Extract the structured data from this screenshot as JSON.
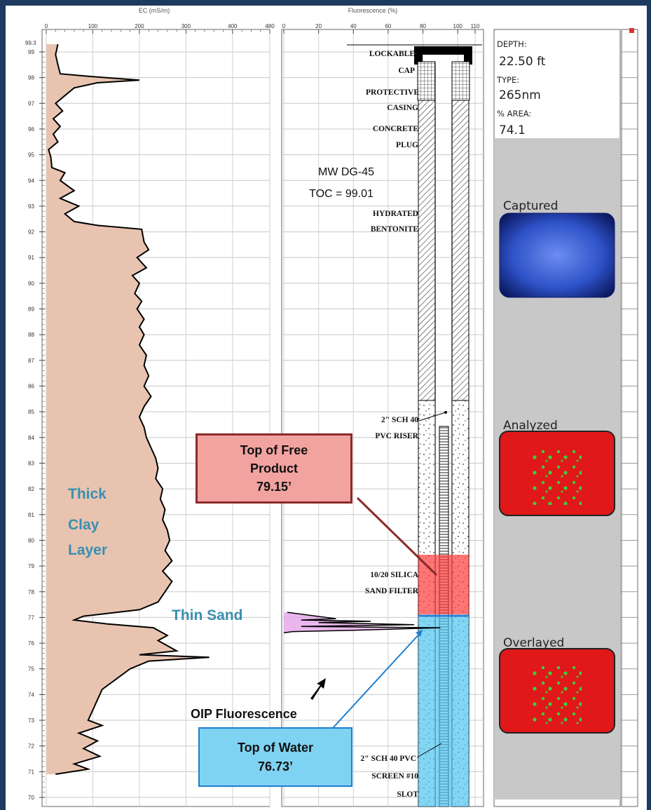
{
  "ec_log": {
    "axis_title": "EC (mS/m)",
    "x_ticks": [
      "0",
      "100",
      "200",
      "300",
      "400",
      "480"
    ],
    "top_label": "99.3",
    "depth_ticks": [
      "99",
      "98",
      "97",
      "96",
      "95",
      "94",
      "93",
      "92",
      "91",
      "90",
      "89",
      "88",
      "87",
      "86",
      "85",
      "84",
      "83",
      "82",
      "81",
      "80",
      "79",
      "78",
      "77",
      "76",
      "75",
      "74",
      "73",
      "72",
      "71",
      "70"
    ]
  },
  "fluor_log": {
    "axis_title": "Fluorescence (%)",
    "x_ticks": [
      "0",
      "20",
      "40",
      "60",
      "80",
      "100",
      "110"
    ]
  },
  "well": {
    "id_label": "MW DG-45",
    "toc_label": "TOC = 99.01",
    "labels": [
      "LOCKABLE",
      "CAP",
      "PROTECTIVE",
      "CASING",
      "CONCRETE",
      "PLUG",
      "HYDRATED",
      "BENTONITE",
      "2\" SCH 40",
      "PVC RISER",
      "10/20 SILICA",
      "SAND FILTER",
      "2\" SCH 40 PVC",
      "SCREEN #10",
      "SLOT"
    ]
  },
  "annotations": {
    "clay_layer": [
      "Thick",
      "Clay",
      "Layer"
    ],
    "thin_sand": "Thin Sand",
    "oip": "OIP Fluorescence",
    "free_product": {
      "line1": "Top of Free",
      "line2": "Product",
      "line3": "79.15’",
      "color": "#f2a3a0"
    },
    "water": {
      "line1": "Top of Water",
      "line2": "76.73’",
      "color": "#7fd3f2"
    }
  },
  "image_panel": {
    "depth_label": "DEPTH:",
    "depth_value": "22.50 ft",
    "type_label": "TYPE:",
    "type_value": "265nm",
    "area_label": "% AREA:",
    "area_value": "74.1",
    "captured": "Captured",
    "analyzed": "Analyzed",
    "overlayed": "Overlayed"
  },
  "chart_data": {
    "type": "line",
    "title": "",
    "series": [
      {
        "name": "EC",
        "x_axis": "EC (mS/m)",
        "y_axis": "depth",
        "points": [
          [
            25,
            99.3
          ],
          [
            20,
            98.9
          ],
          [
            25,
            98.5
          ],
          [
            30,
            98.15
          ],
          [
            90,
            98.05
          ],
          [
            200,
            97.9
          ],
          [
            110,
            97.8
          ],
          [
            60,
            97.6
          ],
          [
            40,
            97.3
          ],
          [
            20,
            97.0
          ],
          [
            35,
            96.7
          ],
          [
            15,
            96.4
          ],
          [
            30,
            96.1
          ],
          [
            15,
            95.8
          ],
          [
            25,
            95.5
          ],
          [
            5,
            95.2
          ],
          [
            10,
            94.9
          ],
          [
            12,
            94.5
          ],
          [
            40,
            94.3
          ],
          [
            30,
            94.0
          ],
          [
            60,
            93.6
          ],
          [
            30,
            93.3
          ],
          [
            70,
            93.0
          ],
          [
            40,
            92.7
          ],
          [
            60,
            92.4
          ],
          [
            110,
            92.25
          ],
          [
            205,
            92.1
          ],
          [
            210,
            91.6
          ],
          [
            220,
            91.3
          ],
          [
            195,
            91.0
          ],
          [
            215,
            90.6
          ],
          [
            185,
            90.3
          ],
          [
            200,
            90.0
          ],
          [
            190,
            89.6
          ],
          [
            205,
            89.3
          ],
          [
            195,
            89.0
          ],
          [
            210,
            88.6
          ],
          [
            200,
            88.3
          ],
          [
            210,
            88.0
          ],
          [
            200,
            87.6
          ],
          [
            215,
            87.2
          ],
          [
            210,
            86.8
          ],
          [
            220,
            86.4
          ],
          [
            210,
            86.0
          ],
          [
            225,
            85.6
          ],
          [
            210,
            85.2
          ],
          [
            200,
            84.8
          ],
          [
            210,
            84.4
          ],
          [
            215,
            84.0
          ],
          [
            225,
            83.6
          ],
          [
            235,
            83.2
          ],
          [
            240,
            82.8
          ],
          [
            235,
            82.4
          ],
          [
            250,
            82.0
          ],
          [
            245,
            81.6
          ],
          [
            255,
            81.2
          ],
          [
            250,
            80.8
          ],
          [
            260,
            80.4
          ],
          [
            265,
            80.0
          ],
          [
            255,
            79.6
          ],
          [
            270,
            79.2
          ],
          [
            250,
            78.8
          ],
          [
            270,
            78.4
          ],
          [
            255,
            78.0
          ],
          [
            240,
            77.6
          ],
          [
            200,
            77.3
          ],
          [
            80,
            77.05
          ],
          [
            60,
            76.9
          ],
          [
            130,
            76.75
          ],
          [
            230,
            76.6
          ],
          [
            260,
            76.3
          ],
          [
            240,
            76.1
          ],
          [
            260,
            75.9
          ],
          [
            280,
            75.7
          ],
          [
            200,
            75.55
          ],
          [
            350,
            75.45
          ],
          [
            220,
            75.3
          ],
          [
            180,
            75.0
          ],
          [
            150,
            74.6
          ],
          [
            120,
            74.2
          ],
          [
            110,
            73.8
          ],
          [
            100,
            73.4
          ],
          [
            90,
            73.0
          ],
          [
            120,
            72.8
          ],
          [
            70,
            72.5
          ],
          [
            110,
            72.2
          ],
          [
            80,
            71.9
          ],
          [
            115,
            71.6
          ],
          [
            60,
            71.3
          ],
          [
            90,
            71.1
          ],
          [
            20,
            70.9
          ]
        ]
      },
      {
        "name": "Fluorescence",
        "x_axis": "Fluorescence (%)",
        "y_axis": "depth",
        "points": [
          [
            2,
            77.2
          ],
          [
            30,
            76.95
          ],
          [
            10,
            76.9
          ],
          [
            50,
            76.85
          ],
          [
            20,
            76.8
          ],
          [
            75,
            76.72
          ],
          [
            10,
            76.65
          ],
          [
            90,
            76.6
          ],
          [
            40,
            76.5
          ],
          [
            5,
            76.45
          ],
          [
            0,
            76.4
          ]
        ]
      }
    ],
    "xlim_ec": [
      0,
      480
    ],
    "xlim_fluor": [
      0,
      110
    ],
    "ylim": [
      70,
      99.3
    ]
  }
}
